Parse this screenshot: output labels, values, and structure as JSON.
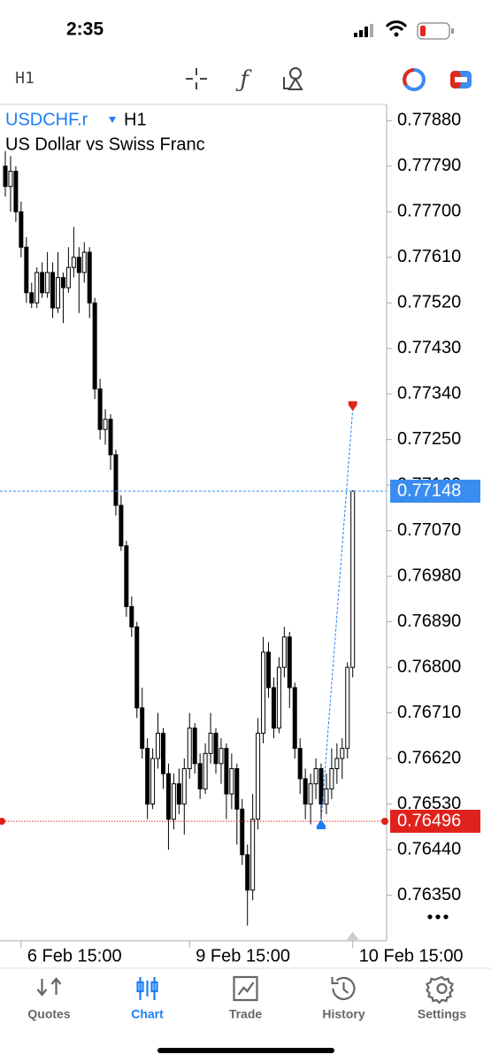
{
  "status_bar": {
    "time": "2:35"
  },
  "toolbar": {
    "timeframe": "H1"
  },
  "chart_data": {
    "type": "candlestick",
    "symbol": "USDCHF.r",
    "timeframe": "H1",
    "subtitle": "US Dollar vs Swiss Franc",
    "categories": [
      null,
      null,
      null,
      "6 Feb 15:00",
      null,
      null,
      null,
      null,
      null,
      null,
      null,
      null,
      null,
      null,
      null,
      null,
      null,
      null,
      null,
      null,
      null,
      null,
      null,
      null,
      null,
      null,
      null,
      null,
      null,
      null,
      null,
      null,
      null,
      null,
      null,
      "9 Feb 15:00",
      null,
      null,
      null,
      null,
      null,
      null,
      null,
      null,
      null,
      null,
      null,
      null,
      null,
      null,
      null,
      null,
      null,
      null,
      null,
      null,
      null,
      null,
      null,
      null,
      null,
      null,
      null,
      null,
      null,
      null,
      "10 Feb 15:00"
    ],
    "open": [
      0.7779,
      0.7775,
      0.7778,
      0.777,
      0.7763,
      0.7754,
      0.7752,
      0.7758,
      0.7754,
      0.7758,
      0.7751,
      0.7757,
      0.7755,
      0.7759,
      0.7761,
      0.7758,
      0.7762,
      0.7752,
      0.7735,
      0.7727,
      0.7729,
      0.7722,
      0.7712,
      0.7704,
      0.7692,
      0.7688,
      0.7672,
      0.7664,
      0.7653,
      0.7662,
      0.7667,
      0.7659,
      0.765,
      0.7657,
      0.7653,
      0.766,
      0.7668,
      0.7661,
      0.7656,
      0.7663,
      0.7667,
      0.7661,
      0.7664,
      0.7655,
      0.766,
      0.7652,
      0.7643,
      0.7636,
      0.765,
      0.7667,
      0.7683,
      0.7676,
      0.7668,
      0.768,
      0.7686,
      0.7676,
      0.7664,
      0.7658,
      0.7653,
      0.7657,
      0.766,
      0.7653,
      0.7656,
      0.766,
      0.7662,
      0.7664,
      0.768
    ],
    "high": [
      0.7782,
      0.7781,
      0.7779,
      0.7772,
      0.7765,
      0.7756,
      0.7759,
      0.776,
      0.7762,
      0.776,
      0.7762,
      0.7758,
      0.7763,
      0.7767,
      0.7763,
      0.7764,
      0.7763,
      0.7753,
      0.7737,
      0.7731,
      0.773,
      0.7723,
      0.7714,
      0.7705,
      0.7694,
      0.7689,
      0.7676,
      0.7666,
      0.7664,
      0.7671,
      0.7668,
      0.7661,
      0.7659,
      0.766,
      0.7662,
      0.7671,
      0.7669,
      0.7663,
      0.7665,
      0.7671,
      0.7668,
      0.7666,
      0.7665,
      0.7663,
      0.7661,
      0.7654,
      0.7645,
      0.7655,
      0.767,
      0.7686,
      0.7685,
      0.7678,
      0.7682,
      0.7688,
      0.7687,
      0.7677,
      0.7666,
      0.766,
      0.7659,
      0.7662,
      0.7661,
      0.7659,
      0.7664,
      0.7665,
      0.7666,
      0.7681,
      0.7715
    ],
    "low": [
      0.7773,
      0.777,
      0.7768,
      0.7761,
      0.7752,
      0.7751,
      0.7751,
      0.7753,
      0.7753,
      0.7749,
      0.775,
      0.7748,
      0.7754,
      0.7757,
      0.775,
      0.7756,
      0.7749,
      0.7733,
      0.7725,
      0.7724,
      0.7719,
      0.771,
      0.7703,
      0.769,
      0.7686,
      0.767,
      0.7662,
      0.765,
      0.7652,
      0.766,
      0.7656,
      0.7644,
      0.7648,
      0.7651,
      0.7647,
      0.7658,
      0.7659,
      0.7654,
      0.7655,
      0.7661,
      0.7659,
      0.7657,
      0.765,
      0.7652,
      0.7645,
      0.7641,
      0.7629,
      0.7634,
      0.7648,
      0.7665,
      0.7674,
      0.7666,
      0.7667,
      0.7678,
      0.7672,
      0.7662,
      0.7655,
      0.765,
      0.7649,
      0.7654,
      0.765,
      0.7651,
      0.7654,
      0.7657,
      0.7658,
      0.7662,
      0.7678
    ],
    "close": [
      0.7775,
      0.7778,
      0.777,
      0.7763,
      0.7754,
      0.7752,
      0.7758,
      0.7754,
      0.7758,
      0.7751,
      0.7757,
      0.7755,
      0.7759,
      0.7761,
      0.7758,
      0.7762,
      0.7752,
      0.7735,
      0.7727,
      0.7729,
      0.7722,
      0.7712,
      0.7704,
      0.7692,
      0.7688,
      0.7672,
      0.7664,
      0.7653,
      0.7662,
      0.7667,
      0.7659,
      0.765,
      0.7657,
      0.7653,
      0.766,
      0.7668,
      0.7661,
      0.7656,
      0.7663,
      0.7667,
      0.7661,
      0.7664,
      0.7655,
      0.766,
      0.7652,
      0.7643,
      0.7636,
      0.765,
      0.7667,
      0.7683,
      0.7676,
      0.7668,
      0.768,
      0.7686,
      0.7676,
      0.7664,
      0.7658,
      0.7653,
      0.7657,
      0.766,
      0.7653,
      0.7656,
      0.766,
      0.7662,
      0.7664,
      0.768,
      0.77148
    ],
    "ylim": [
      0.7626,
      0.77912
    ],
    "yticks": [
      {
        "value": 0.7788,
        "label": "0.77880"
      },
      {
        "value": 0.7779,
        "label": "0.77790"
      },
      {
        "value": 0.777,
        "label": "0.77700"
      },
      {
        "value": 0.7761,
        "label": "0.77610"
      },
      {
        "value": 0.7752,
        "label": "0.77520"
      },
      {
        "value": 0.7743,
        "label": "0.77430"
      },
      {
        "value": 0.7734,
        "label": "0.77340"
      },
      {
        "value": 0.7725,
        "label": "0.77250"
      },
      {
        "value": 0.7716,
        "label": "0.77160"
      },
      {
        "value": 0.7707,
        "label": "0.77070"
      },
      {
        "value": 0.7698,
        "label": "0.76980"
      },
      {
        "value": 0.7689,
        "label": "0.76890"
      },
      {
        "value": 0.768,
        "label": "0.76800"
      },
      {
        "value": 0.7671,
        "label": "0.76710"
      },
      {
        "value": 0.7662,
        "label": "0.76620"
      },
      {
        "value": 0.7653,
        "label": "0.76530"
      },
      {
        "value": 0.7644,
        "label": "0.76440"
      },
      {
        "value": 0.7635,
        "label": "0.76350"
      }
    ],
    "price_lines": [
      {
        "value": 0.77148,
        "color": "#3b8cf0"
      },
      {
        "value": 0.76496,
        "color": "#df231c"
      }
    ],
    "trade": {
      "entry": 0.76496,
      "exit": 0.7731
    }
  },
  "tab_bar": {
    "tabs": [
      "Quotes",
      "Chart",
      "Trade",
      "History",
      "Settings"
    ],
    "active": 1
  }
}
